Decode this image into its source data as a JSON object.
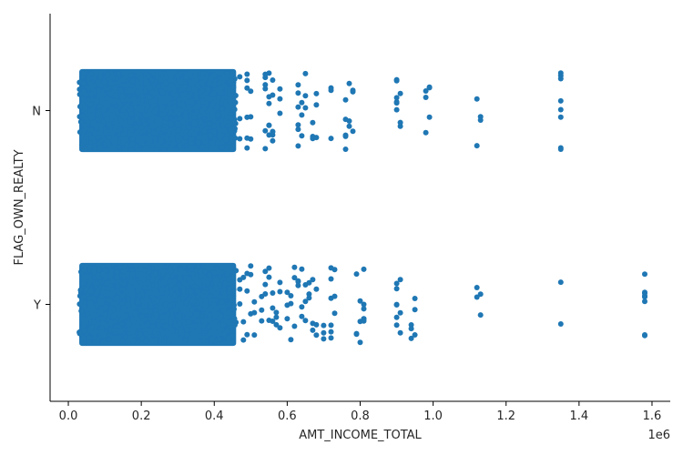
{
  "chart_data": {
    "type": "scatter",
    "subtype": "strip",
    "xlabel": "AMT_INCOME_TOTAL",
    "ylabel": "FLAG_OWN_REALTY",
    "x_offset_label": "1e6",
    "xlim": [
      -0.05,
      1.65
    ],
    "x_ticks": [
      0.0,
      0.2,
      0.4,
      0.6,
      0.8,
      1.0,
      1.2,
      1.4,
      1.6
    ],
    "x_tick_labels": [
      "0.0",
      "0.2",
      "0.4",
      "0.6",
      "0.8",
      "1.0",
      "1.2",
      "1.4",
      "1.6"
    ],
    "categories": [
      "N",
      "Y"
    ],
    "point_color": "#1f77b4",
    "grid": false,
    "series": [
      {
        "category": "N",
        "dense_range": [
          0.03,
          0.46
        ],
        "x": [
          0.47,
          0.49,
          0.49,
          0.5,
          0.54,
          0.54,
          0.55,
          0.55,
          0.56,
          0.56,
          0.58,
          0.63,
          0.63,
          0.64,
          0.65,
          0.67,
          0.68,
          0.72,
          0.76,
          0.76,
          0.77,
          0.78,
          0.9,
          0.9,
          0.91,
          0.98,
          0.99,
          1.12,
          1.13,
          1.35,
          1.35,
          1.35,
          1.35
        ]
      },
      {
        "category": "Y",
        "dense_range": [
          0.03,
          0.46
        ],
        "x": [
          0.47,
          0.48,
          0.49,
          0.5,
          0.51,
          0.53,
          0.54,
          0.55,
          0.56,
          0.57,
          0.58,
          0.6,
          0.61,
          0.62,
          0.63,
          0.64,
          0.65,
          0.66,
          0.67,
          0.68,
          0.7,
          0.72,
          0.72,
          0.73,
          0.79,
          0.8,
          0.81,
          0.81,
          0.9,
          0.9,
          0.91,
          0.94,
          0.95,
          1.12,
          1.13,
          1.35,
          1.58,
          1.58,
          1.58,
          1.58
        ]
      }
    ]
  }
}
